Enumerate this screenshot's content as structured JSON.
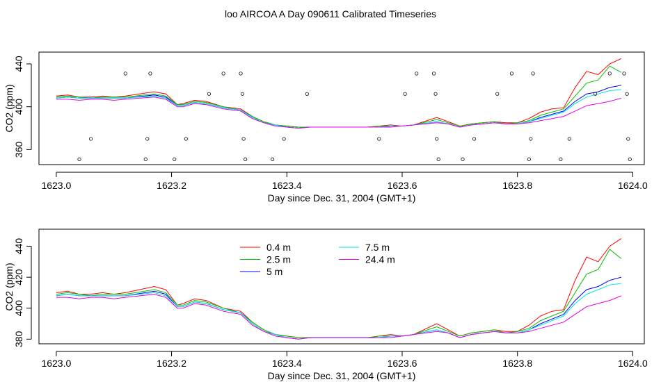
{
  "title": "loo AIRCOA A  Day 090611  Calibrated Timeseries",
  "colors": {
    "0.4 m": "#ff0000",
    "2.5 m": "#00c000",
    "5 m": "#0000ff",
    "7.5 m": "#00e5e5",
    "24.4 m": "#e000e0"
  },
  "chart_data": [
    {
      "type": "scatter+line",
      "xlabel": "Day since Dec. 31, 2004 (GMT+1)",
      "ylabel": "CO2 (ppm)",
      "xlim": [
        1622.97,
        1624.02
      ],
      "ylim": [
        346,
        451
      ],
      "xticks": [
        1623.0,
        1623.2,
        1623.4,
        1623.6,
        1623.8,
        1624.0
      ],
      "xtick_labels": [
        "1623.0",
        "1623.2",
        "1623.4",
        "1623.6",
        "1623.8",
        "1624.0"
      ],
      "yticks": [
        360,
        400,
        440
      ],
      "ytick_labels": [
        "360",
        "400",
        "440"
      ],
      "points": [
        [
          1623.04,
          351
        ],
        [
          1623.06,
          370
        ],
        [
          1623.12,
          431
        ],
        [
          1623.155,
          351
        ],
        [
          1623.158,
          370
        ],
        [
          1623.163,
          431
        ],
        [
          1623.205,
          351
        ],
        [
          1623.225,
          370
        ],
        [
          1623.265,
          412
        ],
        [
          1623.29,
          431
        ],
        [
          1623.32,
          431
        ],
        [
          1623.323,
          412
        ],
        [
          1623.325,
          370
        ],
        [
          1623.328,
          351
        ],
        [
          1623.375,
          351
        ],
        [
          1623.395,
          370
        ],
        [
          1623.435,
          412
        ],
        [
          1623.56,
          370
        ],
        [
          1623.605,
          412
        ],
        [
          1623.625,
          431
        ],
        [
          1623.655,
          431
        ],
        [
          1623.658,
          412
        ],
        [
          1623.66,
          370
        ],
        [
          1623.663,
          351
        ],
        [
          1623.705,
          351
        ],
        [
          1623.725,
          370
        ],
        [
          1623.765,
          412
        ],
        [
          1623.79,
          431
        ],
        [
          1623.82,
          351
        ],
        [
          1623.823,
          370
        ],
        [
          1623.827,
          431
        ],
        [
          1623.875,
          351
        ],
        [
          1623.89,
          370
        ],
        [
          1623.935,
          412
        ],
        [
          1623.96,
          431
        ],
        [
          1623.985,
          431
        ],
        [
          1623.99,
          412
        ],
        [
          1623.992,
          370
        ],
        [
          1623.995,
          351
        ]
      ],
      "series": [
        {
          "name": "0.4 m",
          "values": [
            410,
            411,
            409,
            409,
            410,
            409,
            410,
            414,
            412,
            402,
            403,
            406,
            405,
            400,
            398,
            391,
            386,
            383,
            382,
            381,
            381,
            381,
            381,
            381,
            381,
            381,
            382,
            383,
            382,
            383,
            390,
            386,
            382,
            384,
            385,
            386,
            385,
            385,
            389,
            395,
            398,
            399,
            418,
            433,
            430,
            440,
            445
          ]
        },
        {
          "name": "2.5 m",
          "values": [
            409,
            410,
            409,
            408,
            409,
            409,
            409,
            412,
            410,
            402,
            402,
            405,
            404,
            400,
            397,
            391,
            386,
            383,
            382,
            381,
            381,
            381,
            381,
            381,
            381,
            381,
            382,
            382,
            382,
            383,
            388,
            385,
            382,
            384,
            385,
            386,
            384,
            385,
            387,
            392,
            395,
            398,
            410,
            422,
            425,
            438,
            432
          ]
        },
        {
          "name": "5 m",
          "values": [
            408,
            409,
            408,
            408,
            408,
            408,
            408,
            411,
            409,
            401,
            401,
            404,
            403,
            399,
            397,
            390,
            385,
            383,
            381,
            380,
            381,
            381,
            381,
            381,
            381,
            381,
            381,
            382,
            382,
            383,
            386,
            384,
            381,
            383,
            384,
            385,
            384,
            384,
            386,
            390,
            393,
            396,
            405,
            412,
            414,
            418,
            420
          ]
        },
        {
          "name": "7.5 m",
          "values": [
            408,
            409,
            408,
            408,
            408,
            408,
            408,
            410,
            408,
            401,
            401,
            404,
            403,
            399,
            397,
            390,
            385,
            383,
            381,
            380,
            381,
            381,
            381,
            381,
            381,
            381,
            381,
            382,
            382,
            383,
            386,
            384,
            381,
            383,
            384,
            385,
            384,
            384,
            386,
            389,
            392,
            395,
            403,
            409,
            412,
            415,
            416
          ]
        },
        {
          "name": "24.4 m",
          "values": [
            407,
            407,
            406,
            407,
            407,
            406,
            407,
            409,
            407,
            400,
            400,
            403,
            402,
            398,
            396,
            389,
            385,
            382,
            381,
            380,
            381,
            381,
            381,
            381,
            381,
            381,
            381,
            381,
            382,
            383,
            385,
            384,
            381,
            383,
            384,
            385,
            384,
            384,
            385,
            387,
            389,
            391,
            396,
            401,
            403,
            405,
            408
          ]
        }
      ],
      "x": [
        1623.0,
        1623.02,
        1623.04,
        1623.06,
        1623.08,
        1623.1,
        1623.12,
        1623.17,
        1623.19,
        1623.21,
        1623.22,
        1623.24,
        1623.26,
        1623.29,
        1623.32,
        1623.34,
        1623.36,
        1623.38,
        1623.4,
        1623.42,
        1623.44,
        1623.46,
        1623.48,
        1623.5,
        1623.52,
        1623.54,
        1623.56,
        1623.58,
        1623.6,
        1623.62,
        1623.66,
        1623.68,
        1623.7,
        1623.72,
        1623.74,
        1623.76,
        1623.78,
        1623.8,
        1623.82,
        1623.84,
        1623.86,
        1623.88,
        1623.9,
        1623.92,
        1623.94,
        1623.96,
        1623.98
      ],
      "legend": "none"
    },
    {
      "type": "line",
      "xlabel": "Day since Dec. 31, 2004 (GMT+1)",
      "ylabel": "CO2 (ppm)",
      "xlim": [
        1622.97,
        1624.02
      ],
      "ylim": [
        377,
        451
      ],
      "xticks": [
        1623.0,
        1623.2,
        1623.4,
        1623.6,
        1623.8,
        1624.0
      ],
      "xtick_labels": [
        "1623.0",
        "1623.2",
        "1623.4",
        "1623.6",
        "1623.8",
        "1624.0"
      ],
      "yticks": [
        380,
        400,
        420,
        440
      ],
      "ytick_labels": [
        "380",
        "400",
        "420",
        "440"
      ],
      "legend": "top-left",
      "legend_entries": [
        "0.4 m",
        "2.5 m",
        "5 m",
        "7.5 m",
        "24.4 m"
      ],
      "x": [
        1623.0,
        1623.02,
        1623.04,
        1623.06,
        1623.08,
        1623.1,
        1623.12,
        1623.17,
        1623.19,
        1623.21,
        1623.22,
        1623.24,
        1623.26,
        1623.29,
        1623.32,
        1623.34,
        1623.36,
        1623.38,
        1623.4,
        1623.42,
        1623.44,
        1623.46,
        1623.48,
        1623.5,
        1623.52,
        1623.54,
        1623.56,
        1623.58,
        1623.6,
        1623.62,
        1623.66,
        1623.68,
        1623.7,
        1623.72,
        1623.74,
        1623.76,
        1623.78,
        1623.8,
        1623.82,
        1623.84,
        1623.86,
        1623.88,
        1623.9,
        1623.92,
        1623.94,
        1623.96,
        1623.98
      ],
      "series": [
        {
          "name": "0.4 m",
          "values": [
            410,
            411,
            409,
            409,
            410,
            409,
            410,
            414,
            412,
            402,
            403,
            406,
            405,
            400,
            398,
            391,
            386,
            383,
            382,
            381,
            381,
            381,
            381,
            381,
            381,
            381,
            382,
            383,
            382,
            383,
            390,
            386,
            382,
            384,
            385,
            386,
            385,
            385,
            389,
            395,
            398,
            399,
            418,
            433,
            430,
            440,
            445
          ]
        },
        {
          "name": "2.5 m",
          "values": [
            409,
            410,
            409,
            408,
            409,
            409,
            409,
            412,
            410,
            402,
            402,
            405,
            404,
            400,
            397,
            391,
            386,
            383,
            382,
            381,
            381,
            381,
            381,
            381,
            381,
            381,
            382,
            382,
            382,
            383,
            388,
            385,
            382,
            384,
            385,
            386,
            384,
            385,
            387,
            392,
            395,
            398,
            410,
            422,
            425,
            438,
            432
          ]
        },
        {
          "name": "5 m",
          "values": [
            408,
            409,
            408,
            408,
            408,
            408,
            408,
            411,
            409,
            401,
            401,
            404,
            403,
            399,
            397,
            390,
            385,
            383,
            381,
            380,
            381,
            381,
            381,
            381,
            381,
            381,
            381,
            382,
            382,
            383,
            386,
            384,
            381,
            383,
            384,
            385,
            384,
            384,
            386,
            390,
            393,
            396,
            405,
            412,
            414,
            418,
            420
          ]
        },
        {
          "name": "7.5 m",
          "values": [
            408,
            409,
            408,
            408,
            408,
            408,
            408,
            410,
            408,
            401,
            401,
            404,
            403,
            399,
            397,
            390,
            385,
            383,
            381,
            380,
            381,
            381,
            381,
            381,
            381,
            381,
            381,
            382,
            382,
            383,
            386,
            384,
            381,
            383,
            384,
            385,
            384,
            384,
            386,
            389,
            392,
            395,
            403,
            409,
            412,
            415,
            416
          ]
        },
        {
          "name": "24.4 m",
          "values": [
            407,
            407,
            406,
            407,
            407,
            406,
            407,
            409,
            407,
            400,
            400,
            403,
            402,
            398,
            396,
            389,
            385,
            382,
            381,
            380,
            381,
            381,
            381,
            381,
            381,
            381,
            381,
            381,
            382,
            383,
            385,
            384,
            381,
            383,
            384,
            385,
            384,
            384,
            385,
            387,
            389,
            391,
            396,
            401,
            403,
            405,
            408
          ]
        }
      ]
    }
  ]
}
